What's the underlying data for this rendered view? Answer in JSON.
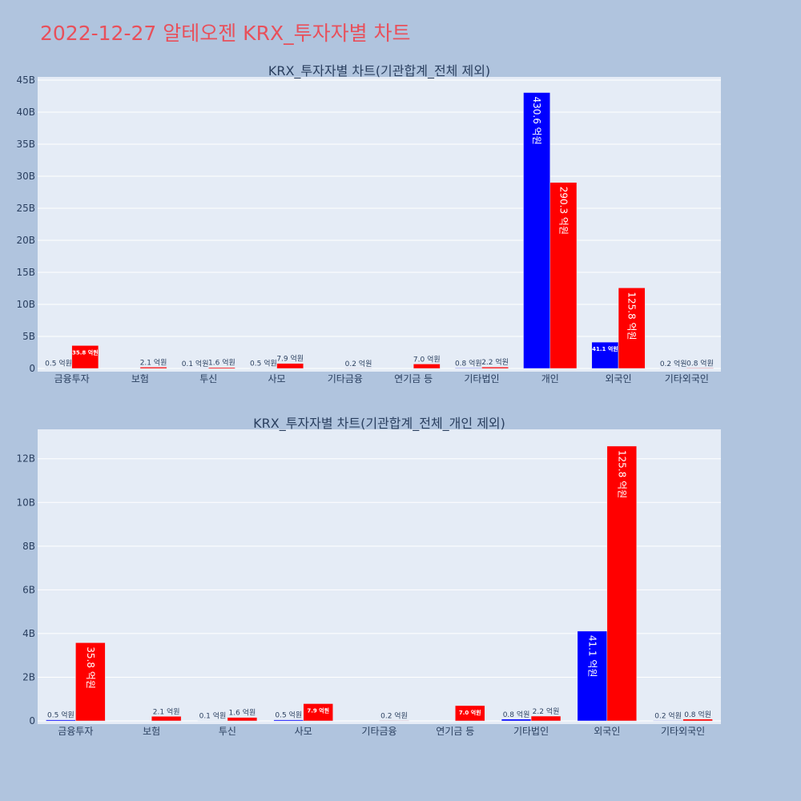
{
  "title": "2022-12-27 알테오젠 KRX_투자자별 차트",
  "colors": {
    "buy": "#0000ff",
    "sell": "#ff0000",
    "plot_bg": "#e5ecf6",
    "page_bg": "#b0c4de",
    "title": "#e8505b"
  },
  "chart_data": [
    {
      "type": "bar",
      "title": "KRX_투자자별 차트(기관합계_전체 제외)",
      "categories": [
        "금융투자",
        "보험",
        "투신",
        "사모",
        "기타금융",
        "연기금 등",
        "기타법인",
        "개인",
        "외국인",
        "기타외국인"
      ],
      "ylim": [
        0,
        45
      ],
      "y_ticks": [
        0,
        5,
        10,
        15,
        20,
        25,
        30,
        35,
        40,
        45
      ],
      "y_tick_labels": [
        "0",
        "5B",
        "10B",
        "15B",
        "20B",
        "25B",
        "30B",
        "35B",
        "40B",
        "45B"
      ],
      "grid": true,
      "series": [
        {
          "color": "#0000ff",
          "values": [
            0.05,
            0,
            0.01,
            0.05,
            0,
            0,
            0.08,
            43.06,
            4.11,
            0.02
          ],
          "labels": [
            "0.5 억원",
            "",
            "0.1 억원",
            "0.5 억원",
            "",
            "",
            "0.8 억원",
            "430.6 억원",
            "41.1 억원",
            "0.2 억원"
          ]
        },
        {
          "color": "#ff0000",
          "values": [
            3.58,
            0.21,
            0.16,
            0.79,
            0.02,
            0.7,
            0.22,
            29.03,
            12.58,
            0.08
          ],
          "labels": [
            "35.8 억원",
            "2.1 억원",
            "1.6 억원",
            "7.9 억원",
            "0.2 억원",
            "7.0 억원",
            "2.2 억원",
            "290.3 억원",
            "125.8 억원",
            "0.8 억원"
          ]
        }
      ]
    },
    {
      "type": "bar",
      "title": "KRX_투자자별 차트(기관합계_전체_개인 제외)",
      "categories": [
        "금융투자",
        "보험",
        "투신",
        "사모",
        "기타금융",
        "연기금 등",
        "기타법인",
        "외국인",
        "기타외국인"
      ],
      "ylim": [
        0,
        13.2
      ],
      "y_ticks": [
        0,
        2,
        4,
        6,
        8,
        10,
        12
      ],
      "y_tick_labels": [
        "0",
        "2B",
        "4B",
        "6B",
        "8B",
        "10B",
        "12B"
      ],
      "grid": true,
      "series": [
        {
          "color": "#0000ff",
          "values": [
            0.05,
            0,
            0.01,
            0.05,
            0,
            0,
            0.08,
            4.11,
            0.02
          ],
          "labels": [
            "0.5 억원",
            "",
            "0.1 억원",
            "0.5 억원",
            "",
            "",
            "0.8 억원",
            "41.1 억원",
            "0.2 억원"
          ]
        },
        {
          "color": "#ff0000",
          "values": [
            3.58,
            0.21,
            0.16,
            0.79,
            0.02,
            0.7,
            0.22,
            12.58,
            0.08
          ],
          "labels": [
            "35.8 억원",
            "2.1 억원",
            "1.6 억원",
            "7.9 억원",
            "0.2 억원",
            "7.0 억원",
            "2.2 억원",
            "125.8 억원",
            "0.8 억원"
          ]
        }
      ]
    }
  ]
}
